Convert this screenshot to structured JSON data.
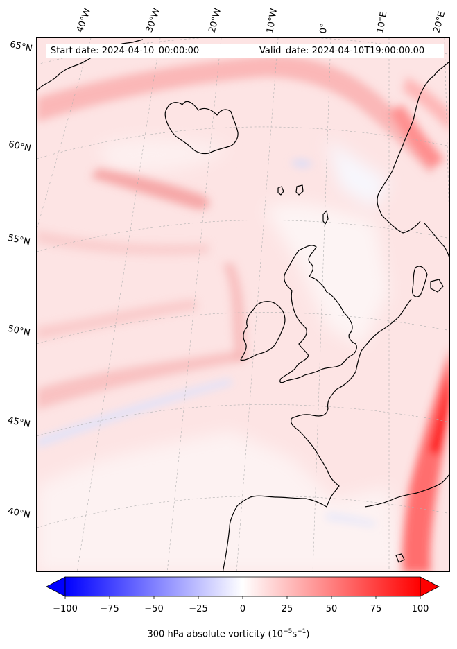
{
  "header": {
    "start_date": "Start date: 2024-04-10_00:00:00",
    "valid_date": "Valid_date: 2024-04-10T19:00:00.00"
  },
  "longitude_labels": [
    "40°W",
    "30°W",
    "20°W",
    "10°W",
    "0°",
    "10°E",
    "20°E"
  ],
  "latitude_labels": [
    "65°N",
    "60°N",
    "55°N",
    "50°N",
    "45°N",
    "40°N"
  ],
  "colorbar": {
    "ticks": [
      "−100",
      "−75",
      "−50",
      "−25",
      "0",
      "25",
      "50",
      "75",
      "100"
    ],
    "min": -100,
    "max": 100,
    "extend": "both",
    "colormap": "bwr",
    "label_prefix": "300 hPa absolute vorticity (10",
    "label_exp1": "−5",
    "label_mid": "s",
    "label_exp2": "−1",
    "label_suffix": ")"
  },
  "colors": {
    "negative": "#0000ff",
    "neutral": "#ffffff",
    "positive": "#ff0000",
    "coastline": "#000000",
    "gridline": "#b0b0b0"
  }
}
